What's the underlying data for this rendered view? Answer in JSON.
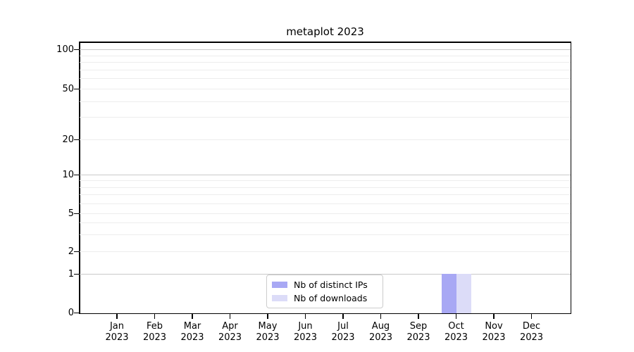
{
  "chart_data": {
    "type": "bar",
    "title": "metaplot 2023",
    "categories": [
      "Jan 2023",
      "Feb 2023",
      "Mar 2023",
      "Apr 2023",
      "May 2023",
      "Jun 2023",
      "Jul 2023",
      "Aug 2023",
      "Sep 2023",
      "Oct 2023",
      "Nov 2023",
      "Dec 2023"
    ],
    "x_ticks": [
      {
        "line1": "Jan",
        "line2": "2023"
      },
      {
        "line1": "Feb",
        "line2": "2023"
      },
      {
        "line1": "Mar",
        "line2": "2023"
      },
      {
        "line1": "Apr",
        "line2": "2023"
      },
      {
        "line1": "May",
        "line2": "2023"
      },
      {
        "line1": "Jun",
        "line2": "2023"
      },
      {
        "line1": "Jul",
        "line2": "2023"
      },
      {
        "line1": "Aug",
        "line2": "2023"
      },
      {
        "line1": "Sep",
        "line2": "2023"
      },
      {
        "line1": "Oct",
        "line2": "2023"
      },
      {
        "line1": "Nov",
        "line2": "2023"
      },
      {
        "line1": "Dec",
        "line2": "2023"
      }
    ],
    "series": [
      {
        "name": "Nb of distinct IPs",
        "color": "#a8a8f4",
        "values": [
          0,
          0,
          0,
          0,
          0,
          0,
          0,
          0,
          0,
          1,
          0,
          0
        ]
      },
      {
        "name": "Nb of downloads",
        "color": "#dcdcf8",
        "values": [
          0,
          0,
          0,
          0,
          0,
          0,
          0,
          0,
          0,
          1,
          0,
          0
        ]
      }
    ],
    "y_axis": {
      "scale": "symlog-like",
      "ticks": [
        {
          "value": 0,
          "label": "0"
        },
        {
          "value": 1,
          "label": "1"
        },
        {
          "value": 2,
          "label": "2"
        },
        {
          "value": 5,
          "label": "5"
        },
        {
          "value": 10,
          "label": "10"
        },
        {
          "value": 20,
          "label": "20"
        },
        {
          "value": 50,
          "label": "50"
        },
        {
          "value": 100,
          "label": "100"
        }
      ],
      "minor_gridline_values": [
        3,
        4,
        6,
        7,
        8,
        9,
        30,
        40,
        60,
        70,
        80,
        90
      ],
      "emphasized_gridline_values": [
        1,
        10,
        100
      ],
      "range": [
        0,
        115
      ],
      "grid": "both"
    },
    "legend": {
      "position": "lower center",
      "entries": [
        "Nb of distinct IPs",
        "Nb of downloads"
      ]
    },
    "colors": {
      "major_grid": "#c9c9c9",
      "minor_grid": "#ededed",
      "spine": "#000000",
      "text": "#000000",
      "legend_border": "#cccccc",
      "background": "#ffffff"
    }
  }
}
